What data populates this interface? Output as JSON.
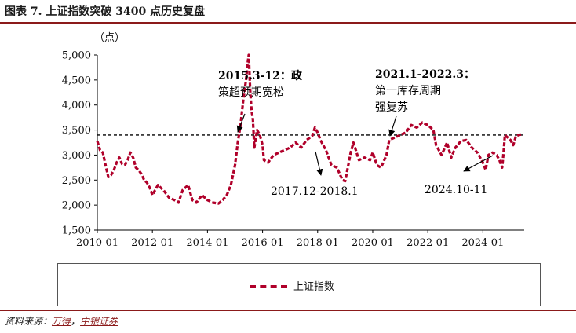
{
  "header": {
    "figure_title": "图表 7. 上证指数突破 3400 点历史复盘"
  },
  "footer": {
    "source_prefix": "资料来源：",
    "source_vendor": "万得",
    "source_sep": "，",
    "source_org": "中银证券"
  },
  "colors": {
    "series": "#b0002a",
    "title_rule": "#8b1a1a",
    "axis": "#000000",
    "reference_line": "#000000"
  },
  "chart_data": {
    "type": "line",
    "title": "上证指数突破 3400 点历史复盘",
    "unit_label": "（点）",
    "xlabel": "",
    "ylabel": "（点）",
    "ylim": [
      1500,
      5000
    ],
    "yticks": [
      1500,
      2000,
      2500,
      3000,
      3500,
      4000,
      4500,
      5000
    ],
    "ytick_labels": [
      "1,500",
      "2,000",
      "2,500",
      "3,000",
      "3,500",
      "4,000",
      "4,500",
      "5,000"
    ],
    "xlim": [
      2010.0,
      2025.5
    ],
    "xticks": [
      2010.0,
      2012.0,
      2014.0,
      2016.0,
      2018.0,
      2020.0,
      2022.0,
      2024.0
    ],
    "xtick_labels": [
      "2010-01",
      "2012-01",
      "2014-01",
      "2016-01",
      "2018-01",
      "2020-01",
      "2022-01",
      "2024-01"
    ],
    "reference_line": {
      "y": 3400,
      "style": "dashed"
    },
    "series": [
      {
        "name": "上证指数",
        "style": "dashed",
        "x": [
          2010.0,
          2010.1,
          2010.2,
          2010.3,
          2010.4,
          2010.5,
          2010.6,
          2010.7,
          2010.8,
          2010.9,
          2011.0,
          2011.1,
          2011.2,
          2011.3,
          2011.4,
          2011.5,
          2011.6,
          2011.7,
          2011.8,
          2011.9,
          2012.0,
          2012.2,
          2012.4,
          2012.6,
          2012.8,
          2012.95,
          2013.1,
          2013.3,
          2013.45,
          2013.6,
          2013.8,
          2014.0,
          2014.2,
          2014.4,
          2014.55,
          2014.7,
          2014.85,
          2015.0,
          2015.1,
          2015.2,
          2015.3,
          2015.4,
          2015.45,
          2015.5,
          2015.55,
          2015.6,
          2015.65,
          2015.7,
          2015.8,
          2015.9,
          2016.0,
          2016.05,
          2016.2,
          2016.4,
          2016.6,
          2016.8,
          2017.0,
          2017.2,
          2017.4,
          2017.6,
          2017.8,
          2017.9,
          2018.0,
          2018.1,
          2018.3,
          2018.5,
          2018.7,
          2018.9,
          2019.0,
          2019.2,
          2019.3,
          2019.5,
          2019.7,
          2019.9,
          2020.0,
          2020.15,
          2020.3,
          2020.5,
          2020.6,
          2020.8,
          2021.0,
          2021.2,
          2021.4,
          2021.6,
          2021.8,
          2022.0,
          2022.2,
          2022.3,
          2022.5,
          2022.7,
          2022.85,
          2023.0,
          2023.2,
          2023.4,
          2023.6,
          2023.8,
          2024.0,
          2024.1,
          2024.2,
          2024.35,
          2024.5,
          2024.6,
          2024.7,
          2024.75,
          2024.8,
          2024.9,
          2025.0,
          2025.1,
          2025.2,
          2025.3,
          2025.45
        ],
        "values": [
          3280,
          3100,
          3050,
          2800,
          2560,
          2600,
          2700,
          2850,
          2950,
          2820,
          2800,
          2900,
          3050,
          2950,
          2750,
          2700,
          2620,
          2500,
          2450,
          2350,
          2200,
          2400,
          2300,
          2150,
          2100,
          2050,
          2300,
          2400,
          2100,
          2050,
          2200,
          2100,
          2050,
          2030,
          2100,
          2200,
          2400,
          2800,
          3250,
          3600,
          4100,
          4500,
          4800,
          5000,
          4300,
          3900,
          3700,
          3150,
          3500,
          3400,
          3200,
          2900,
          2850,
          3000,
          3050,
          3100,
          3150,
          3250,
          3150,
          3300,
          3380,
          3550,
          3450,
          3300,
          3100,
          2800,
          2750,
          2500,
          2480,
          3050,
          3250,
          2900,
          2950,
          2900,
          3050,
          2800,
          2750,
          3000,
          3300,
          3350,
          3400,
          3450,
          3600,
          3550,
          3650,
          3600,
          3500,
          3200,
          3000,
          3250,
          2950,
          3150,
          3280,
          3300,
          3150,
          3050,
          2850,
          2700,
          3000,
          3050,
          3000,
          2900,
          2750,
          3050,
          3400,
          3350,
          3300,
          3200,
          3380,
          3400,
          3420
        ]
      }
    ],
    "annotations": [
      {
        "text_lines": [
          "2015.3-12：政",
          "策超预期宽松"
        ],
        "bold_first": true
      },
      {
        "text_lines": [
          "2021.1-2022.3：",
          "第一库存周期",
          "强复苏"
        ],
        "bold_first": true
      },
      {
        "text_lines": [
          "2017.12-2018.1"
        ],
        "bold_first": false
      },
      {
        "text_lines": [
          "2024.10-11"
        ],
        "bold_first": false
      }
    ],
    "legend": {
      "position": "bottom",
      "label": "上证指数"
    }
  }
}
